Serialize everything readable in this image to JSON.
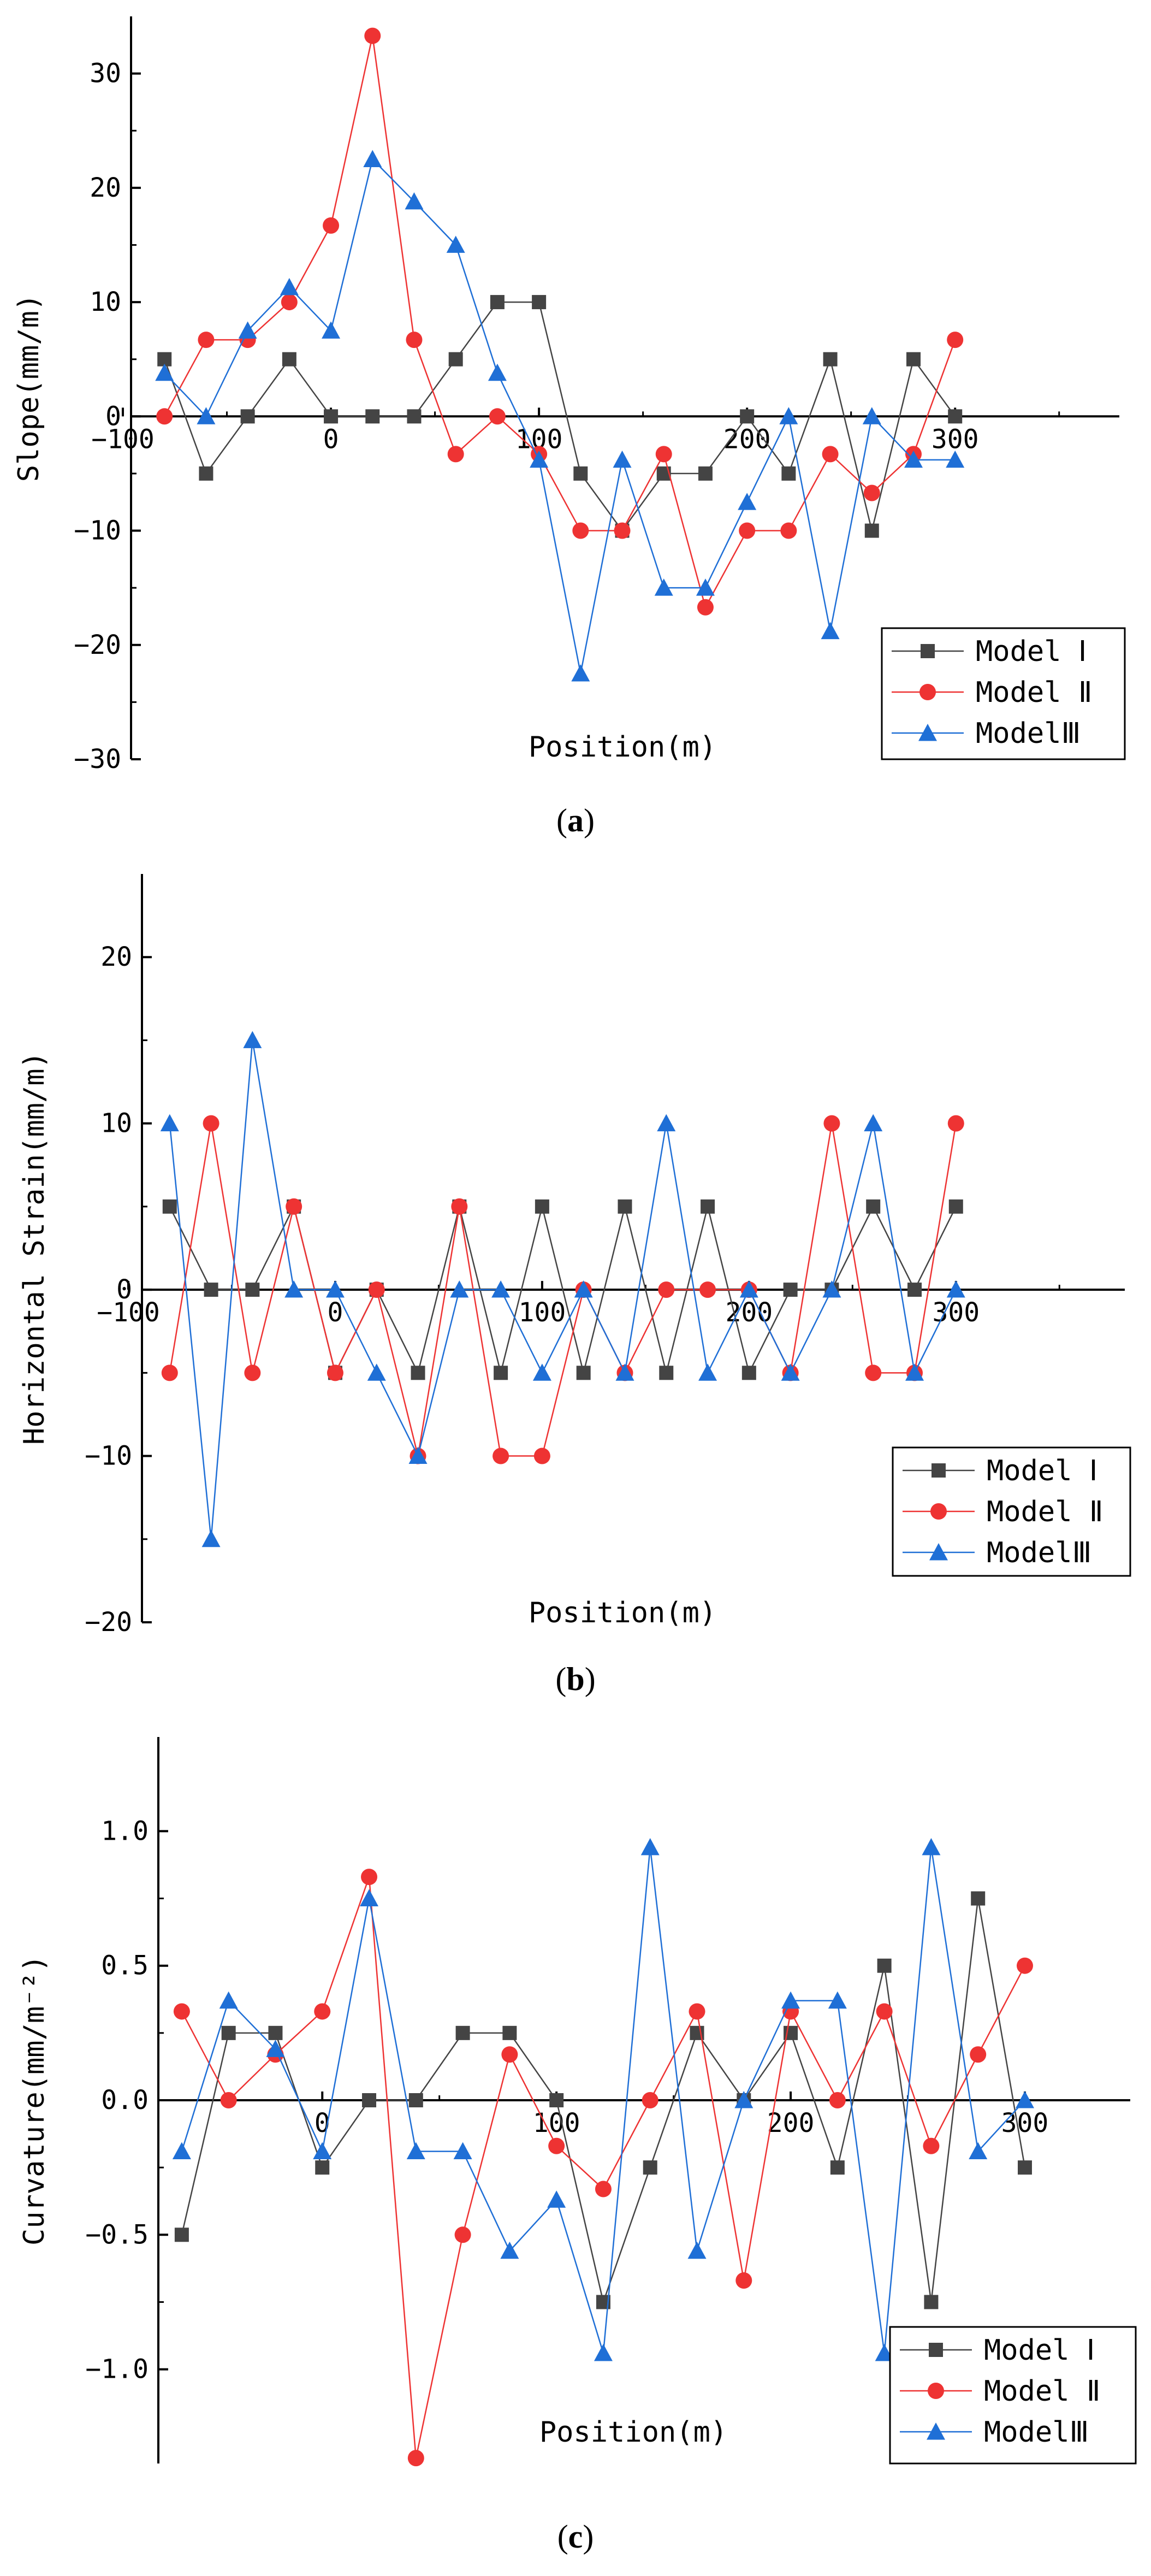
{
  "colors": {
    "model1": "#444444",
    "model2": "#ee3333",
    "model3": "#1f6fd6",
    "axis": "#000000"
  },
  "legend": [
    "Model Ⅰ",
    "Model Ⅱ",
    "ModelⅢ"
  ],
  "captions": [
    "a",
    "b",
    "c"
  ],
  "chart_data": [
    {
      "type": "line",
      "panel": "a",
      "xlabel": "Position(m)",
      "ylabel": "Slope(mm/m)",
      "xlim": [
        -100,
        375
      ],
      "ylim": [
        -30,
        35
      ],
      "xticks": [
        -100,
        0,
        100,
        200,
        300
      ],
      "yticks": [
        -30,
        -20,
        -10,
        0,
        10,
        20,
        30
      ],
      "legend_position": "bottom-right",
      "series": [
        {
          "name": "Model Ⅰ",
          "marker": "square",
          "x": [
            -80,
            -60,
            -40,
            -20,
            0,
            20,
            40,
            60,
            80,
            100,
            120,
            140,
            160,
            180,
            200,
            220,
            240,
            260,
            280,
            300
          ],
          "y": [
            5,
            -5,
            0,
            5,
            0,
            0,
            0,
            5,
            10,
            10,
            -5,
            -10,
            -5,
            -5,
            0,
            -5,
            5,
            -10,
            5,
            0
          ]
        },
        {
          "name": "Model Ⅱ",
          "marker": "circle",
          "x": [
            -80,
            -60,
            -40,
            -20,
            0,
            20,
            40,
            60,
            80,
            100,
            120,
            140,
            160,
            180,
            200,
            220,
            240,
            260,
            280,
            300
          ],
          "y": [
            0,
            6.7,
            6.7,
            10,
            16.7,
            33.3,
            6.7,
            -3.3,
            0,
            -3.3,
            -10,
            -10,
            -3.3,
            -16.7,
            -10,
            -10,
            -3.3,
            -6.7,
            -3.3,
            6.7
          ]
        },
        {
          "name": "ModelⅢ",
          "marker": "triangle",
          "x": [
            -80,
            -60,
            -40,
            -20,
            0,
            20,
            40,
            60,
            80,
            100,
            120,
            140,
            160,
            180,
            200,
            220,
            240,
            260,
            280,
            300
          ],
          "y": [
            3.8,
            0,
            7.5,
            11.3,
            7.5,
            22.5,
            18.8,
            15,
            3.8,
            -3.8,
            -22.5,
            -3.8,
            -15,
            -15,
            -7.5,
            0,
            -18.8,
            0,
            -3.8,
            -3.8
          ]
        }
      ]
    },
    {
      "type": "line",
      "panel": "b",
      "xlabel": "Position(m)",
      "ylabel": "Horizontal Strain(mm/m)",
      "xlim": [
        -100,
        375
      ],
      "ylim": [
        -20,
        25
      ],
      "xticks": [
        -100,
        0,
        100,
        200,
        300
      ],
      "yticks": [
        -20,
        -10,
        0,
        10,
        20
      ],
      "legend_position": "bottom-right",
      "series": [
        {
          "name": "Model Ⅰ",
          "marker": "square",
          "x": [
            -80,
            -60,
            -40,
            -20,
            0,
            20,
            40,
            60,
            80,
            100,
            120,
            140,
            160,
            180,
            200,
            220,
            240,
            260,
            280,
            300
          ],
          "y": [
            5,
            0,
            0,
            5,
            -5,
            0,
            -5,
            5,
            -5,
            5,
            -5,
            5,
            -5,
            5,
            -5,
            0,
            0,
            5,
            0,
            5
          ]
        },
        {
          "name": "Model Ⅱ",
          "marker": "circle",
          "x": [
            -80,
            -60,
            -40,
            -20,
            0,
            20,
            40,
            60,
            80,
            100,
            120,
            140,
            160,
            180,
            200,
            220,
            240,
            260,
            280,
            300
          ],
          "y": [
            -5,
            10,
            -5,
            5,
            -5,
            0,
            -10,
            5,
            -10,
            -10,
            0,
            -5,
            0,
            0,
            0,
            -5,
            10,
            -5,
            -5,
            10
          ]
        },
        {
          "name": "ModelⅢ",
          "marker": "triangle",
          "x": [
            -80,
            -60,
            -40,
            -20,
            0,
            20,
            40,
            60,
            80,
            100,
            120,
            140,
            160,
            180,
            200,
            220,
            240,
            260,
            280,
            300
          ],
          "y": [
            10,
            -15,
            15,
            0,
            0,
            -5,
            -10,
            0,
            0,
            -5,
            0,
            -5,
            10,
            -5,
            0,
            -5,
            0,
            10,
            -5,
            0
          ]
        }
      ]
    },
    {
      "type": "line",
      "panel": "c",
      "xlabel": "Position(m)",
      "ylabel": "Curvature(mm/m⁻²)",
      "xlim": [
        -70,
        345
      ],
      "ylim": [
        -1.35,
        1.35
      ],
      "xticks": [
        0,
        100,
        200,
        300
      ],
      "yticks": [
        -1.0,
        -0.5,
        0.0,
        0.5,
        1.0
      ],
      "legend_position": "bottom-right",
      "series": [
        {
          "name": "Model Ⅰ",
          "marker": "square",
          "x": [
            -60,
            -40,
            -20,
            0,
            20,
            40,
            60,
            80,
            100,
            120,
            140,
            160,
            180,
            200,
            220,
            240,
            260,
            280,
            300
          ],
          "y": [
            -0.5,
            0.25,
            0.25,
            -0.25,
            0,
            0,
            0.25,
            0.25,
            0,
            -0.75,
            -0.25,
            0.25,
            0,
            0.25,
            -0.25,
            0.5,
            -0.75,
            0.75,
            -0.25
          ]
        },
        {
          "name": "Model Ⅱ",
          "marker": "circle",
          "x": [
            -60,
            -40,
            -20,
            0,
            20,
            40,
            60,
            80,
            100,
            120,
            140,
            160,
            180,
            200,
            220,
            240,
            260,
            280,
            300
          ],
          "y": [
            0.33,
            0,
            0.17,
            0.33,
            0.83,
            -1.33,
            -0.5,
            0.17,
            -0.17,
            -0.33,
            0,
            0.33,
            -0.67,
            0.33,
            0,
            0.33,
            -0.17,
            0.17,
            0.5
          ]
        },
        {
          "name": "ModelⅢ",
          "marker": "triangle",
          "x": [
            -60,
            -40,
            -20,
            0,
            20,
            40,
            60,
            80,
            100,
            120,
            140,
            160,
            180,
            200,
            220,
            240,
            260,
            280,
            300
          ],
          "y": [
            -0.19,
            0.37,
            0.19,
            -0.19,
            0.75,
            -0.19,
            -0.19,
            -0.56,
            -0.37,
            -0.94,
            0.94,
            -0.56,
            0,
            0.37,
            0.37,
            -0.94,
            0.94,
            -0.19,
            0
          ]
        }
      ]
    }
  ]
}
